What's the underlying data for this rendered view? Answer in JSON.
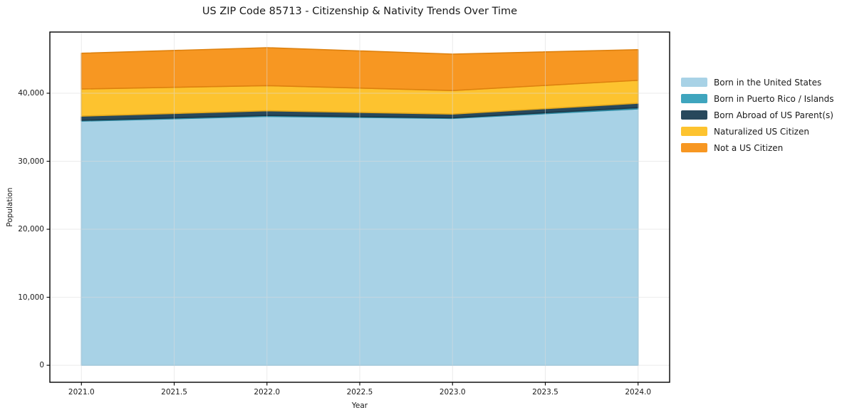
{
  "chart_data": {
    "type": "area",
    "stacked": true,
    "title": "US ZIP Code 85713 - Citizenship & Nativity Trends Over Time",
    "xlabel": "Year",
    "ylabel": "Population",
    "x": [
      2021,
      2022,
      2023,
      2024
    ],
    "series": [
      {
        "name": "Born in the United States",
        "color": "#A8D2E6",
        "edge": "#8CC2DC",
        "values": [
          35900,
          36600,
          36300,
          37700
        ]
      },
      {
        "name": "Born in Puerto Rico / Islands",
        "color": "#3FA5BE",
        "edge": "#2E8BA3",
        "values": [
          120,
          140,
          100,
          180
        ]
      },
      {
        "name": "Born Abroad of US Parent(s)",
        "color": "#27485C",
        "edge": "#1C3747",
        "values": [
          620,
          680,
          540,
          650
        ]
      },
      {
        "name": "Naturalized US Citizen",
        "color": "#FDC32F",
        "edge": "#E3A81C",
        "values": [
          3990,
          3700,
          3460,
          3370
        ]
      },
      {
        "name": "Not a US Citizen",
        "color": "#F79722",
        "edge": "#DE810E",
        "values": [
          5250,
          5580,
          5350,
          4500
        ]
      }
    ],
    "totals": [
      45880,
      46700,
      45750,
      46400
    ],
    "xlim": [
      2020.83,
      2024.17
    ],
    "ylim": [
      -2500,
      49000
    ],
    "x_ticks": [
      2021.0,
      2021.5,
      2022.0,
      2022.5,
      2023.0,
      2023.5,
      2024.0
    ],
    "x_tick_labels": [
      "2021.0",
      "2021.5",
      "2022.0",
      "2022.5",
      "2023.0",
      "2023.5",
      "2024.0"
    ],
    "y_ticks": [
      0,
      10000,
      20000,
      30000,
      40000
    ],
    "y_tick_labels": [
      "0",
      "10,000",
      "20,000",
      "30,000",
      "40,000"
    ],
    "grid": true,
    "grid_color": "#dcdcdc",
    "frame_color": "#000000",
    "legend_position": "outside-right"
  }
}
